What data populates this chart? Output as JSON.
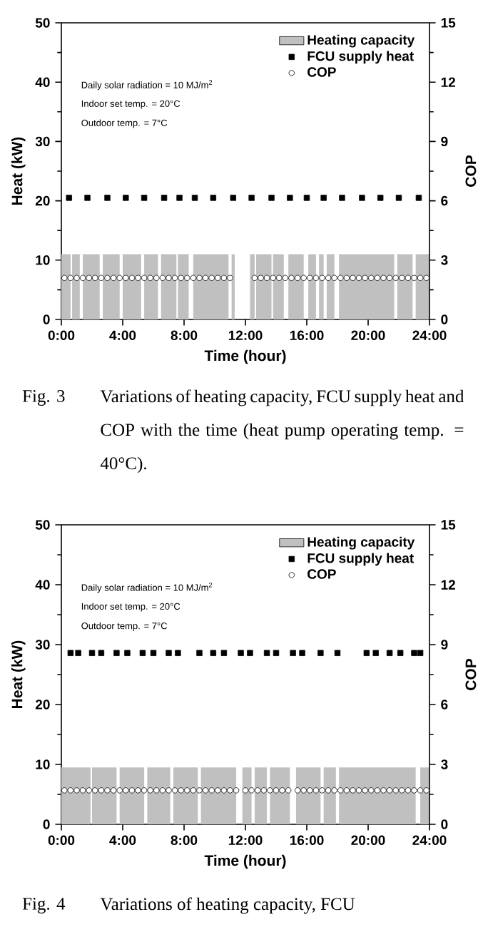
{
  "chart_data": [
    {
      "type": "scatter",
      "xlabel": "Time (hour)",
      "ylabel": "Heat (kW)",
      "y2label": "COP",
      "xlim": [
        0,
        24
      ],
      "xticks": [
        {
          "value": 0,
          "label": "0:00"
        },
        {
          "value": 4,
          "label": "4:00"
        },
        {
          "value": 8,
          "label": "8:00"
        },
        {
          "value": 12,
          "label": "12:00"
        },
        {
          "value": 16,
          "label": "16:00"
        },
        {
          "value": 20,
          "label": "20:00"
        },
        {
          "value": 24,
          "label": "24:00"
        }
      ],
      "ylim": [
        0,
        50
      ],
      "yticks": [
        0,
        10,
        20,
        30,
        40,
        50
      ],
      "y2lim": [
        0,
        15
      ],
      "y2ticks": [
        0,
        3,
        6,
        9,
        12,
        15
      ],
      "legend": "top right",
      "annotations": [
        "Daily solar radiation = 10 MJ/m$^{2}$",
        "Indoor set temp. = 20°C",
        "Outdoor temp. = 7°C",
        "Fig. 3",
        "Variations of heating capacity, FCU supply heat and COP with the time (heat pump operating temp. = 40°C)."
      ],
      "series": [
        {
          "name": "Heating capacity",
          "type": "area",
          "color": "#c0c0c0",
          "x": [
            0,
            0.6,
            0.6,
            0.7,
            0.7,
            1.2,
            1.2,
            1.4,
            1.4,
            2.5,
            2.5,
            2.7,
            2.7,
            3.8,
            3.8,
            4.0,
            4.0,
            5.2,
            5.2,
            5.4,
            5.4,
            6.3,
            6.3,
            6.5,
            6.5,
            7.5,
            7.5,
            7.6,
            7.6,
            8.3,
            8.3,
            8.6,
            8.6,
            10.9,
            10.9,
            11.1,
            11.1,
            11.3,
            11.3,
            12.3,
            12.3,
            12.6,
            12.6,
            12.7,
            12.7,
            13.7,
            13.7,
            13.8,
            13.8,
            14.5,
            14.5,
            14.8,
            14.8,
            15.8,
            15.8,
            16.1,
            16.1,
            16.6,
            16.6,
            16.8,
            16.8,
            17.1,
            17.1,
            17.3,
            17.3,
            17.8,
            17.8,
            18.1,
            18.1,
            21.7,
            21.7,
            21.9,
            21.9,
            22.9,
            22.9,
            23.1,
            23.1,
            24
          ],
          "values": [
            11,
            11,
            0,
            0,
            11,
            11,
            0,
            0,
            11,
            11,
            0,
            0,
            11,
            11,
            0,
            0,
            11,
            11,
            0,
            0,
            11,
            11,
            0,
            0,
            11,
            11,
            0,
            0,
            11,
            11,
            0,
            0,
            11,
            11,
            0,
            0,
            11,
            11,
            0,
            0,
            11,
            11,
            0,
            0,
            11,
            11,
            0,
            0,
            11,
            11,
            0,
            0,
            11,
            11,
            0,
            0,
            11,
            11,
            0,
            0,
            11,
            11,
            0,
            0,
            11,
            11,
            0,
            0,
            11,
            11,
            0,
            0,
            11,
            11,
            0,
            0,
            11,
            11
          ]
        },
        {
          "name": "FCU supply heat",
          "marker": "square",
          "color": "#000000",
          "x": [
            0.5,
            1.7,
            3.0,
            4.2,
            5.4,
            6.7,
            7.7,
            8.7,
            9.9,
            11.2,
            12.4,
            13.7,
            14.9,
            16.0,
            17.1,
            18.3,
            19.6,
            20.8,
            22.0,
            23.3
          ],
          "values": [
            20.5,
            20.5,
            20.5,
            20.5,
            20.5,
            20.5,
            20.5,
            20.5,
            20.5,
            20.5,
            20.5,
            20.5,
            20.5,
            20.5,
            20.5,
            20.5,
            20.5,
            20.5,
            20.5,
            20.5
          ]
        },
        {
          "name": "COP",
          "marker": "circle",
          "axis": "y2",
          "color": "#000000",
          "x": [
            0.2,
            0.6,
            1.0,
            1.4,
            1.8,
            2.2,
            2.6,
            3.0,
            3.4,
            3.8,
            4.2,
            4.6,
            5.0,
            5.4,
            5.8,
            6.2,
            6.6,
            7.0,
            7.4,
            7.8,
            8.2,
            8.6,
            9.0,
            9.4,
            9.8,
            10.2,
            10.6,
            11.0,
            12.6,
            13.0,
            13.4,
            13.8,
            14.2,
            14.6,
            15.0,
            15.4,
            15.8,
            16.2,
            16.6,
            17.0,
            17.4,
            17.8,
            18.2,
            18.6,
            19.0,
            19.4,
            19.8,
            20.2,
            20.6,
            21.0,
            21.4,
            21.8,
            22.2,
            22.6,
            23.0,
            23.4,
            23.8
          ],
          "values": [
            2.1,
            2.1,
            2.1,
            2.1,
            2.1,
            2.1,
            2.1,
            2.1,
            2.1,
            2.1,
            2.1,
            2.1,
            2.1,
            2.1,
            2.1,
            2.1,
            2.1,
            2.1,
            2.1,
            2.1,
            2.1,
            2.1,
            2.1,
            2.1,
            2.1,
            2.1,
            2.1,
            2.1,
            2.1,
            2.1,
            2.1,
            2.1,
            2.1,
            2.1,
            2.1,
            2.1,
            2.1,
            2.1,
            2.1,
            2.1,
            2.1,
            2.1,
            2.1,
            2.1,
            2.1,
            2.1,
            2.1,
            2.1,
            2.1,
            2.1,
            2.1,
            2.1,
            2.1,
            2.1,
            2.1,
            2.1,
            2.1
          ]
        }
      ]
    },
    {
      "type": "scatter",
      "xlabel": "Time (hour)",
      "ylabel": "Heat (kW)",
      "y2label": "COP",
      "xlim": [
        0,
        24
      ],
      "xticks": [
        {
          "value": 0,
          "label": "0:00"
        },
        {
          "value": 4,
          "label": "4:00"
        },
        {
          "value": 8,
          "label": "8:00"
        },
        {
          "value": 12,
          "label": "12:00"
        },
        {
          "value": 16,
          "label": "16:00"
        },
        {
          "value": 20,
          "label": "20:00"
        },
        {
          "value": 24,
          "label": "24:00"
        }
      ],
      "ylim": [
        0,
        50
      ],
      "yticks": [
        0,
        10,
        20,
        30,
        40,
        50
      ],
      "y2lim": [
        0,
        15
      ],
      "y2ticks": [
        0,
        3,
        6,
        9,
        12,
        15
      ],
      "legend": "top right",
      "annotations": [
        "Daily solar radiation = 10 MJ/m$^{2}$",
        "Indoor set temp. = 20°C",
        "Outdoor temp. = 7°C",
        "Fig. 4",
        "Variations of heating capacity, FCU"
      ],
      "series": [
        {
          "name": "Heating capacity",
          "type": "area",
          "color": "#c0c0c0",
          "x": [
            0,
            1.9,
            1.9,
            2.0,
            2.0,
            3.6,
            3.6,
            3.8,
            3.8,
            5.4,
            5.4,
            5.6,
            5.6,
            7.1,
            7.1,
            7.3,
            7.3,
            8.9,
            8.9,
            9.1,
            9.1,
            11.4,
            11.4,
            11.8,
            11.8,
            12.4,
            12.4,
            12.6,
            12.6,
            13.4,
            13.4,
            13.6,
            13.6,
            14.9,
            14.9,
            15.3,
            15.3,
            16.9,
            16.9,
            17.1,
            17.1,
            17.9,
            17.9,
            18.1,
            18.1,
            23.1,
            23.1,
            23.4,
            23.4,
            24
          ],
          "values": [
            9.5,
            9.5,
            0,
            0,
            9.5,
            9.5,
            0,
            0,
            9.5,
            9.5,
            0,
            0,
            9.5,
            9.5,
            0,
            0,
            9.5,
            9.5,
            0,
            0,
            9.5,
            9.5,
            0,
            0,
            9.5,
            9.5,
            0,
            0,
            9.5,
            9.5,
            0,
            0,
            9.5,
            9.5,
            0,
            0,
            9.5,
            9.5,
            0,
            0,
            9.5,
            9.5,
            0,
            0,
            9.5,
            9.5,
            0,
            0,
            9.5,
            9.5
          ]
        },
        {
          "name": "FCU supply heat",
          "marker": "square",
          "color": "#000000",
          "x": [
            0.6,
            1.1,
            2.0,
            2.6,
            3.6,
            4.3,
            5.3,
            6.0,
            7.0,
            7.6,
            9.0,
            9.9,
            10.6,
            11.7,
            12.3,
            13.4,
            14.0,
            15.1,
            15.7,
            16.9,
            18.0,
            19.9,
            20.5,
            21.4,
            22.1,
            23.0,
            23.4
          ],
          "values": [
            28.6,
            28.6,
            28.6,
            28.6,
            28.6,
            28.6,
            28.6,
            28.6,
            28.6,
            28.6,
            28.6,
            28.6,
            28.6,
            28.6,
            28.6,
            28.6,
            28.6,
            28.6,
            28.6,
            28.6,
            28.6,
            28.6,
            28.6,
            28.6,
            28.6,
            28.6,
            28.6
          ]
        },
        {
          "name": "COP",
          "marker": "circle",
          "axis": "y2",
          "color": "#000000",
          "x": [
            0.2,
            0.6,
            1.0,
            1.4,
            1.8,
            2.2,
            2.6,
            3.0,
            3.4,
            3.8,
            4.2,
            4.6,
            5.0,
            5.4,
            5.8,
            6.2,
            6.6,
            7.0,
            7.4,
            7.8,
            8.2,
            8.6,
            9.0,
            9.4,
            9.8,
            10.2,
            10.6,
            11.0,
            11.4,
            12.0,
            12.4,
            12.8,
            13.2,
            13.6,
            14.0,
            14.4,
            14.8,
            15.4,
            15.8,
            16.2,
            16.6,
            17.0,
            17.4,
            17.8,
            18.2,
            18.6,
            19.0,
            19.4,
            19.8,
            20.2,
            20.6,
            21.0,
            21.4,
            21.8,
            22.2,
            22.6,
            23.0,
            23.4,
            23.8
          ],
          "values": [
            1.7,
            1.7,
            1.7,
            1.7,
            1.7,
            1.7,
            1.7,
            1.7,
            1.7,
            1.7,
            1.7,
            1.7,
            1.7,
            1.7,
            1.7,
            1.7,
            1.7,
            1.7,
            1.7,
            1.7,
            1.7,
            1.7,
            1.7,
            1.7,
            1.7,
            1.7,
            1.7,
            1.7,
            1.7,
            1.7,
            1.7,
            1.7,
            1.7,
            1.7,
            1.7,
            1.7,
            1.7,
            1.7,
            1.7,
            1.7,
            1.7,
            1.7,
            1.7,
            1.7,
            1.7,
            1.7,
            1.7,
            1.7,
            1.7,
            1.7,
            1.7,
            1.7,
            1.7,
            1.7,
            1.7,
            1.7,
            1.7,
            1.7,
            1.7
          ]
        }
      ]
    }
  ]
}
